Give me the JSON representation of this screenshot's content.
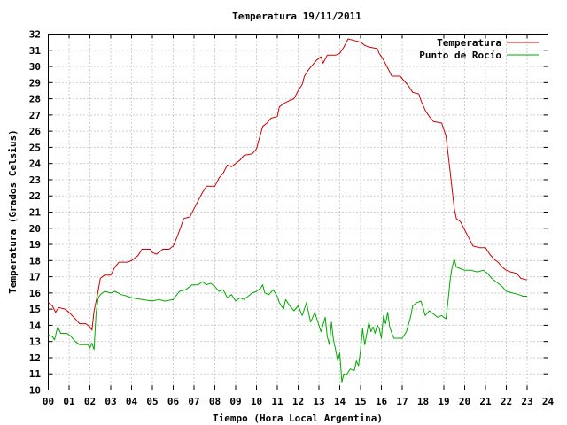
{
  "chart_data": {
    "type": "line",
    "title": "Temperatura 19/11/2011",
    "xlabel": "Tiempo (Hora Local Argentina)",
    "ylabel": "Temperatura (Grados Celsius)",
    "xlim": [
      0,
      24
    ],
    "ylim": [
      10,
      32
    ],
    "x_ticks": [
      "00",
      "01",
      "02",
      "03",
      "04",
      "05",
      "06",
      "07",
      "08",
      "09",
      "10",
      "11",
      "12",
      "13",
      "14",
      "15",
      "16",
      "17",
      "18",
      "19",
      "20",
      "21",
      "22",
      "23",
      "24"
    ],
    "y_ticks": [
      "10",
      "11",
      "12",
      "13",
      "14",
      "15",
      "16",
      "17",
      "18",
      "19",
      "20",
      "21",
      "22",
      "23",
      "24",
      "25",
      "26",
      "27",
      "28",
      "29",
      "30",
      "31",
      "32"
    ],
    "grid": true,
    "legend_position": "top-right",
    "series": [
      {
        "name": "Temperatura",
        "color": "#cc0000",
        "points": [
          [
            0.0,
            15.4
          ],
          [
            0.2,
            15.2
          ],
          [
            0.35,
            14.8
          ],
          [
            0.5,
            15.1
          ],
          [
            0.8,
            15.0
          ],
          [
            1.0,
            14.8
          ],
          [
            1.3,
            14.4
          ],
          [
            1.5,
            14.1
          ],
          [
            1.8,
            14.1
          ],
          [
            2.0,
            13.9
          ],
          [
            2.1,
            13.7
          ],
          [
            2.2,
            14.9
          ],
          [
            2.35,
            15.8
          ],
          [
            2.5,
            16.9
          ],
          [
            2.7,
            17.1
          ],
          [
            3.0,
            17.1
          ],
          [
            3.2,
            17.6
          ],
          [
            3.4,
            17.9
          ],
          [
            3.8,
            17.9
          ],
          [
            4.0,
            18.0
          ],
          [
            4.3,
            18.3
          ],
          [
            4.5,
            18.7
          ],
          [
            4.9,
            18.7
          ],
          [
            5.0,
            18.5
          ],
          [
            5.2,
            18.4
          ],
          [
            5.3,
            18.5
          ],
          [
            5.5,
            18.7
          ],
          [
            5.8,
            18.7
          ],
          [
            6.0,
            18.9
          ],
          [
            6.2,
            19.5
          ],
          [
            6.4,
            20.2
          ],
          [
            6.5,
            20.6
          ],
          [
            6.8,
            20.7
          ],
          [
            7.0,
            21.2
          ],
          [
            7.2,
            21.7
          ],
          [
            7.4,
            22.2
          ],
          [
            7.6,
            22.6
          ],
          [
            8.0,
            22.6
          ],
          [
            8.2,
            23.1
          ],
          [
            8.4,
            23.4
          ],
          [
            8.6,
            23.9
          ],
          [
            8.8,
            23.8
          ],
          [
            9.0,
            24.0
          ],
          [
            9.2,
            24.2
          ],
          [
            9.4,
            24.5
          ],
          [
            9.8,
            24.6
          ],
          [
            10.0,
            24.9
          ],
          [
            10.1,
            25.4
          ],
          [
            10.3,
            26.3
          ],
          [
            10.5,
            26.5
          ],
          [
            10.7,
            26.8
          ],
          [
            11.0,
            26.9
          ],
          [
            11.1,
            27.5
          ],
          [
            11.3,
            27.7
          ],
          [
            11.6,
            27.9
          ],
          [
            11.8,
            28.0
          ],
          [
            12.0,
            28.5
          ],
          [
            12.2,
            28.9
          ],
          [
            12.3,
            29.4
          ],
          [
            12.5,
            29.8
          ],
          [
            12.7,
            30.1
          ],
          [
            12.9,
            30.4
          ],
          [
            13.1,
            30.6
          ],
          [
            13.2,
            30.2
          ],
          [
            13.4,
            30.7
          ],
          [
            13.8,
            30.7
          ],
          [
            14.0,
            30.8
          ],
          [
            14.2,
            31.2
          ],
          [
            14.4,
            31.7
          ],
          [
            14.7,
            31.6
          ],
          [
            15.0,
            31.5
          ],
          [
            15.2,
            31.3
          ],
          [
            15.4,
            31.2
          ],
          [
            15.8,
            31.1
          ],
          [
            15.9,
            30.8
          ],
          [
            16.1,
            30.4
          ],
          [
            16.3,
            29.9
          ],
          [
            16.5,
            29.4
          ],
          [
            16.9,
            29.4
          ],
          [
            17.1,
            29.1
          ],
          [
            17.3,
            28.8
          ],
          [
            17.5,
            28.4
          ],
          [
            17.8,
            28.3
          ],
          [
            17.9,
            27.9
          ],
          [
            18.1,
            27.3
          ],
          [
            18.3,
            26.9
          ],
          [
            18.5,
            26.6
          ],
          [
            18.9,
            26.5
          ],
          [
            19.1,
            25.7
          ],
          [
            19.3,
            23.5
          ],
          [
            19.5,
            21.2
          ],
          [
            19.6,
            20.6
          ],
          [
            19.8,
            20.4
          ],
          [
            20.0,
            19.9
          ],
          [
            20.2,
            19.4
          ],
          [
            20.4,
            18.9
          ],
          [
            20.7,
            18.8
          ],
          [
            21.0,
            18.8
          ],
          [
            21.2,
            18.4
          ],
          [
            21.4,
            18.1
          ],
          [
            21.6,
            17.9
          ],
          [
            21.8,
            17.6
          ],
          [
            22.0,
            17.4
          ],
          [
            22.2,
            17.3
          ],
          [
            22.5,
            17.2
          ],
          [
            22.7,
            16.9
          ],
          [
            23.0,
            16.8
          ]
        ]
      },
      {
        "name": "Punto de Rocío",
        "color": "#00aa00",
        "points": [
          [
            0.0,
            13.4
          ],
          [
            0.2,
            13.3
          ],
          [
            0.3,
            13.1
          ],
          [
            0.45,
            13.9
          ],
          [
            0.6,
            13.5
          ],
          [
            0.9,
            13.5
          ],
          [
            1.1,
            13.3
          ],
          [
            1.3,
            13.0
          ],
          [
            1.5,
            12.8
          ],
          [
            1.9,
            12.8
          ],
          [
            2.0,
            12.6
          ],
          [
            2.1,
            12.9
          ],
          [
            2.2,
            12.5
          ],
          [
            2.3,
            14.8
          ],
          [
            2.4,
            15.7
          ],
          [
            2.5,
            15.9
          ],
          [
            2.7,
            16.1
          ],
          [
            3.0,
            16.0
          ],
          [
            3.2,
            16.1
          ],
          [
            3.5,
            15.9
          ],
          [
            3.8,
            15.8
          ],
          [
            4.0,
            15.7
          ],
          [
            4.5,
            15.6
          ],
          [
            5.0,
            15.5
          ],
          [
            5.3,
            15.6
          ],
          [
            5.6,
            15.5
          ],
          [
            6.0,
            15.6
          ],
          [
            6.3,
            16.1
          ],
          [
            6.6,
            16.2
          ],
          [
            6.9,
            16.5
          ],
          [
            7.2,
            16.5
          ],
          [
            7.4,
            16.7
          ],
          [
            7.6,
            16.5
          ],
          [
            7.8,
            16.6
          ],
          [
            8.0,
            16.4
          ],
          [
            8.2,
            16.1
          ],
          [
            8.4,
            16.2
          ],
          [
            8.6,
            15.7
          ],
          [
            8.8,
            15.9
          ],
          [
            9.0,
            15.5
          ],
          [
            9.2,
            15.7
          ],
          [
            9.4,
            15.6
          ],
          [
            9.6,
            15.8
          ],
          [
            9.8,
            16.0
          ],
          [
            10.0,
            16.1
          ],
          [
            10.2,
            16.3
          ],
          [
            10.3,
            16.5
          ],
          [
            10.4,
            16.0
          ],
          [
            10.6,
            15.9
          ],
          [
            10.8,
            16.2
          ],
          [
            11.0,
            15.8
          ],
          [
            11.1,
            15.4
          ],
          [
            11.3,
            15.0
          ],
          [
            11.4,
            15.6
          ],
          [
            11.6,
            15.2
          ],
          [
            11.8,
            14.9
          ],
          [
            12.0,
            15.2
          ],
          [
            12.2,
            14.6
          ],
          [
            12.4,
            15.4
          ],
          [
            12.6,
            14.2
          ],
          [
            12.8,
            14.8
          ],
          [
            13.0,
            14.0
          ],
          [
            13.1,
            13.6
          ],
          [
            13.3,
            14.5
          ],
          [
            13.4,
            13.3
          ],
          [
            13.5,
            12.8
          ],
          [
            13.6,
            14.2
          ],
          [
            13.7,
            13.1
          ],
          [
            13.8,
            12.5
          ],
          [
            13.9,
            11.8
          ],
          [
            14.0,
            12.3
          ],
          [
            14.1,
            10.5
          ],
          [
            14.2,
            11.0
          ],
          [
            14.3,
            10.9
          ],
          [
            14.5,
            11.3
          ],
          [
            14.7,
            11.2
          ],
          [
            14.8,
            11.8
          ],
          [
            14.9,
            11.5
          ],
          [
            15.0,
            12.5
          ],
          [
            15.1,
            13.8
          ],
          [
            15.2,
            12.8
          ],
          [
            15.4,
            14.2
          ],
          [
            15.5,
            13.6
          ],
          [
            15.6,
            13.9
          ],
          [
            15.7,
            13.5
          ],
          [
            15.8,
            14.0
          ],
          [
            15.9,
            13.8
          ],
          [
            16.0,
            13.2
          ],
          [
            16.1,
            14.6
          ],
          [
            16.2,
            14.1
          ],
          [
            16.3,
            14.8
          ],
          [
            16.4,
            13.9
          ],
          [
            16.5,
            13.5
          ],
          [
            16.6,
            13.2
          ],
          [
            17.0,
            13.2
          ],
          [
            17.2,
            13.6
          ],
          [
            17.4,
            14.5
          ],
          [
            17.5,
            15.2
          ],
          [
            17.7,
            15.4
          ],
          [
            17.9,
            15.5
          ],
          [
            18.0,
            15.1
          ],
          [
            18.1,
            14.6
          ],
          [
            18.3,
            14.9
          ],
          [
            18.5,
            14.7
          ],
          [
            18.7,
            14.5
          ],
          [
            18.9,
            14.6
          ],
          [
            19.1,
            14.4
          ],
          [
            19.2,
            15.5
          ],
          [
            19.3,
            16.8
          ],
          [
            19.4,
            17.6
          ],
          [
            19.5,
            18.1
          ],
          [
            19.6,
            17.6
          ],
          [
            19.8,
            17.5
          ],
          [
            20.0,
            17.4
          ],
          [
            20.3,
            17.4
          ],
          [
            20.6,
            17.3
          ],
          [
            20.9,
            17.4
          ],
          [
            21.1,
            17.2
          ],
          [
            21.3,
            16.9
          ],
          [
            21.5,
            16.7
          ],
          [
            21.8,
            16.4
          ],
          [
            22.0,
            16.1
          ],
          [
            22.3,
            16.0
          ],
          [
            22.6,
            15.9
          ],
          [
            22.8,
            15.8
          ],
          [
            23.0,
            15.8
          ]
        ]
      }
    ]
  }
}
